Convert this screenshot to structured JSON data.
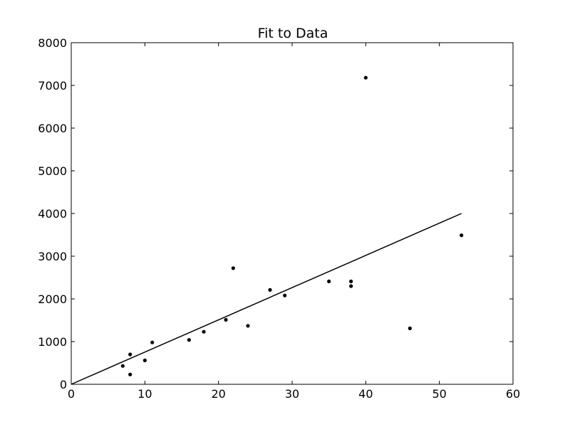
{
  "chart_data": {
    "type": "scatter",
    "title": "Fit to Data",
    "xlabel": "",
    "ylabel": "",
    "xlim": [
      0,
      60
    ],
    "ylim": [
      0,
      8000
    ],
    "xticks": [
      0,
      10,
      20,
      30,
      40,
      50,
      60
    ],
    "yticks": [
      0,
      1000,
      2000,
      3000,
      4000,
      5000,
      6000,
      7000,
      8000
    ],
    "grid": false,
    "series": [
      {
        "type": "scatter",
        "color": "#000000",
        "points": [
          {
            "x": 7,
            "y": 430
          },
          {
            "x": 8,
            "y": 700
          },
          {
            "x": 8,
            "y": 230
          },
          {
            "x": 10,
            "y": 560
          },
          {
            "x": 11,
            "y": 980
          },
          {
            "x": 16,
            "y": 1040
          },
          {
            "x": 18,
            "y": 1230
          },
          {
            "x": 21,
            "y": 1510
          },
          {
            "x": 22,
            "y": 2720
          },
          {
            "x": 24,
            "y": 1370
          },
          {
            "x": 27,
            "y": 2210
          },
          {
            "x": 29,
            "y": 2080
          },
          {
            "x": 35,
            "y": 2410
          },
          {
            "x": 38,
            "y": 2410
          },
          {
            "x": 38,
            "y": 2300
          },
          {
            "x": 40,
            "y": 7180
          },
          {
            "x": 46,
            "y": 1310
          },
          {
            "x": 53,
            "y": 3490
          }
        ]
      },
      {
        "type": "line",
        "color": "#000000",
        "points": [
          {
            "x": 0,
            "y": 0
          },
          {
            "x": 53,
            "y": 4000
          }
        ]
      }
    ]
  }
}
